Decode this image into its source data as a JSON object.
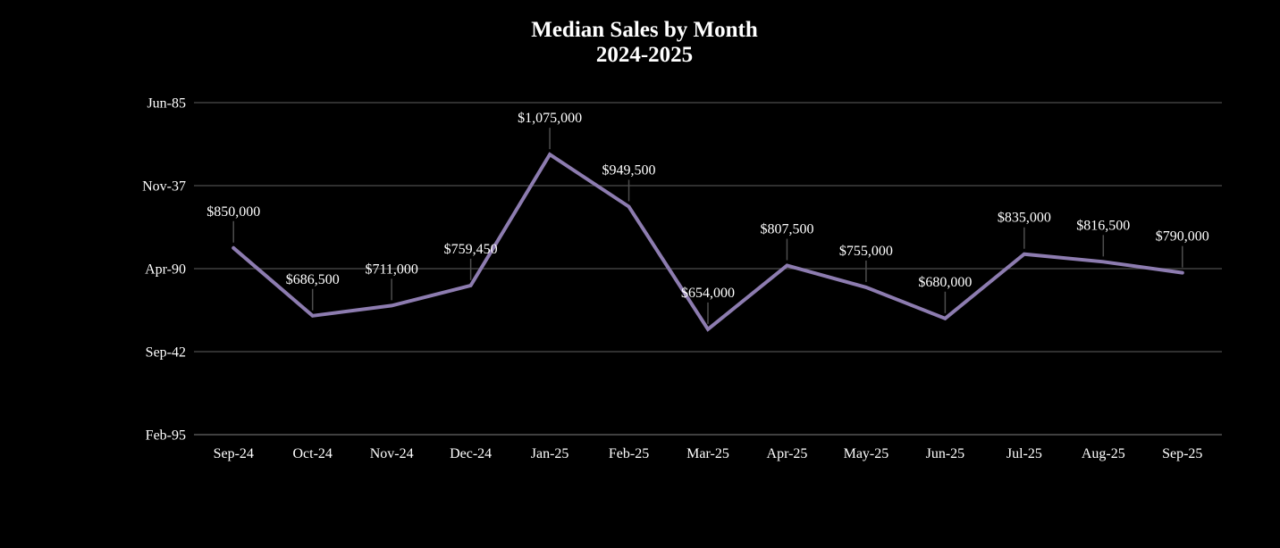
{
  "chart_data": {
    "type": "line",
    "title": "Median Sales by Month",
    "subtitle": "2024-2025",
    "categories": [
      "Sep-24",
      "Oct-24",
      "Nov-24",
      "Dec-24",
      "Jan-25",
      "Feb-25",
      "Mar-25",
      "Apr-25",
      "May-25",
      "Jun-25",
      "Jul-25",
      "Aug-25",
      "Sep-25"
    ],
    "values": [
      850000,
      686500,
      711000,
      759450,
      1075000,
      949500,
      654000,
      807500,
      755000,
      680000,
      835000,
      816500,
      790000
    ],
    "data_labels": [
      "$850,000",
      "$686,500",
      "$711,000",
      "$759,450",
      "$1,075,000",
      "$949,500",
      "$654,000",
      "$807,500",
      "$755,000",
      "$680,000",
      "$835,000",
      "$816,500",
      "$790,000"
    ],
    "xlabel": "",
    "ylabel": "",
    "y_axis": {
      "min": 400000,
      "max": 1200000,
      "step": 200000,
      "tick_labels": [
        "Feb-95",
        "Sep-42",
        "Apr-90",
        "Nov-37",
        "Jun-85"
      ]
    },
    "grid": true,
    "legend": "none",
    "colors": {
      "background": "#000000",
      "series_line": "#8d7cb0",
      "text": "#ffffff",
      "gridline": "#414141",
      "axis_line": "#555555",
      "leader_line": "#4d4d4d"
    }
  }
}
